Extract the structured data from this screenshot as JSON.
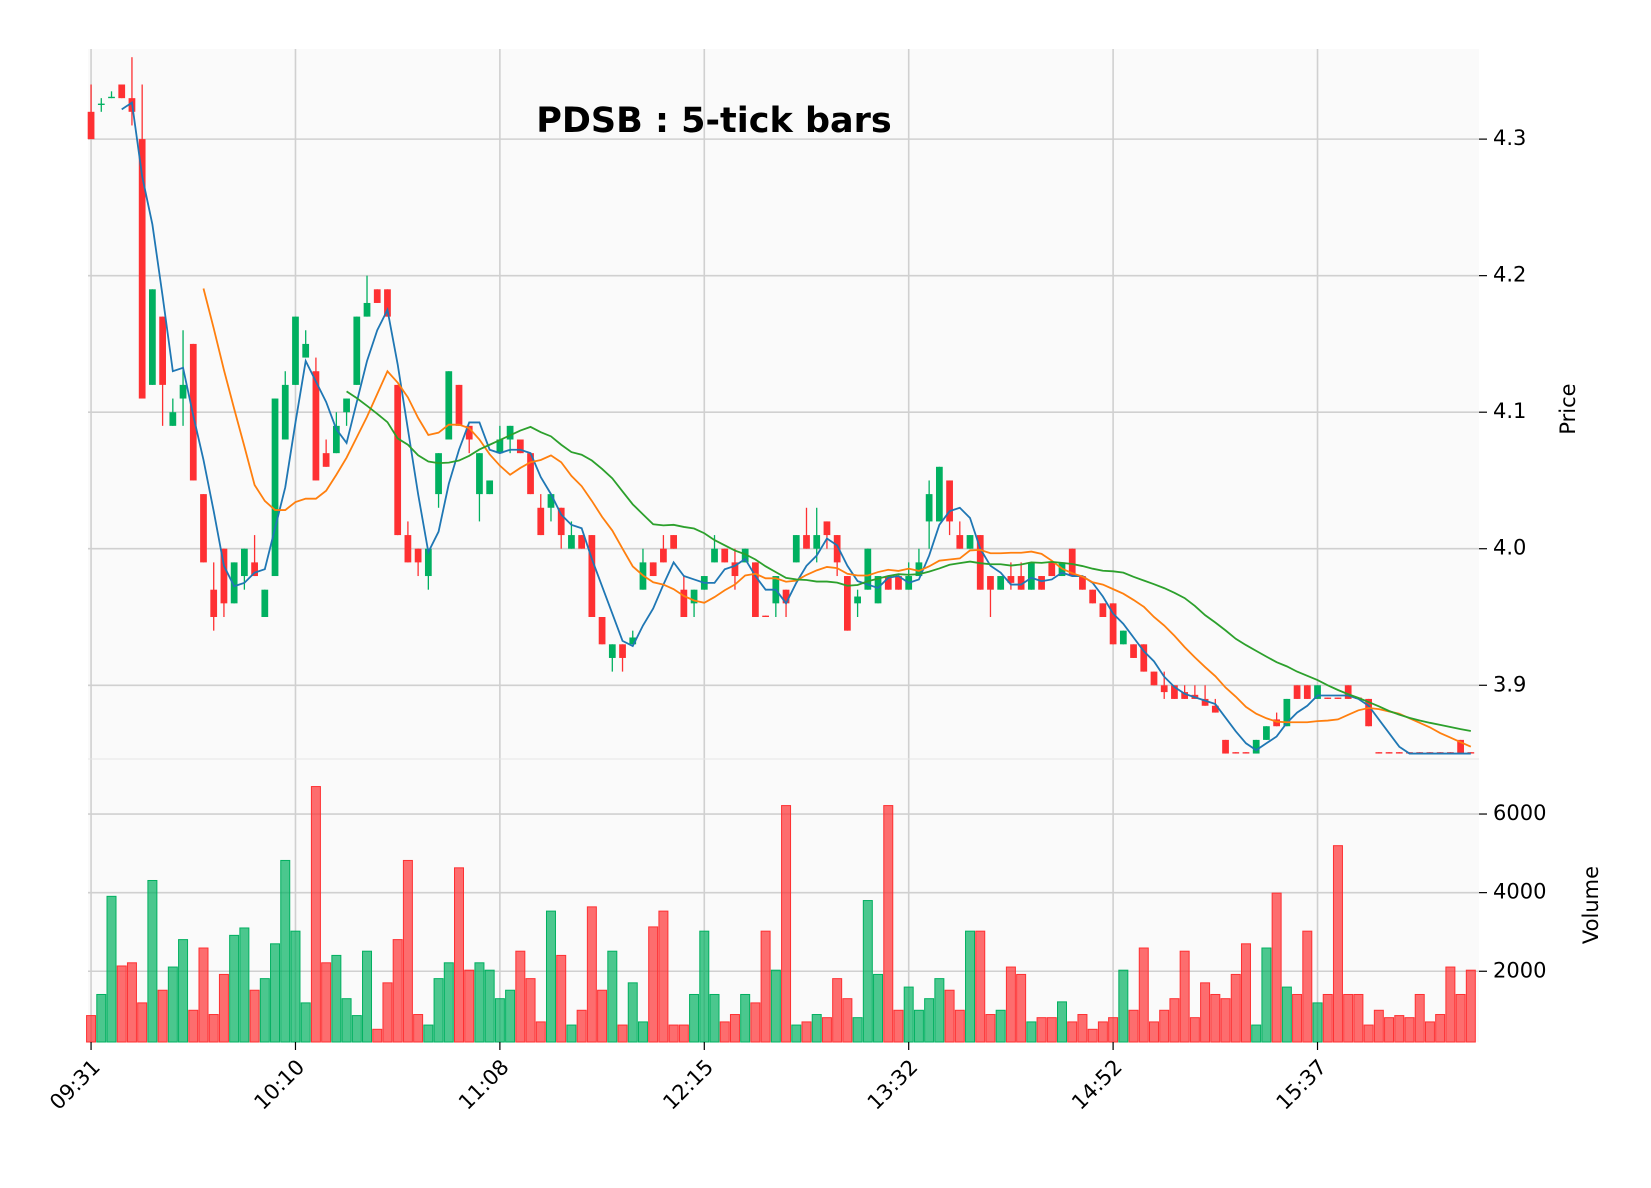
{
  "chart_data": {
    "type": "candlestick",
    "title": "PDSB : 5-tick bars",
    "ylabel": "Price",
    "volume_label": "Volume",
    "xlim": [
      -0.3,
      135.8
    ],
    "xticks": [
      {
        "value": 0,
        "label": "09:31"
      },
      {
        "value": 20,
        "label": "10:10"
      },
      {
        "value": 40,
        "label": "11:08"
      },
      {
        "value": 60,
        "label": "12:15"
      },
      {
        "value": 80,
        "label": "13:32"
      },
      {
        "value": 100,
        "label": "14:52"
      },
      {
        "value": 120,
        "label": "15:37"
      }
    ],
    "ylim": [
      3.846,
      4.366
    ],
    "yticks": [
      3.9,
      {
        "value": 4,
        "label": "4.0"
      },
      4.1,
      4.2,
      4.3
    ],
    "volume_ylim": [
      200,
      7400
    ],
    "volume_yticks": [
      2000,
      4000,
      6000
    ],
    "grid": true,
    "up_color": "#00b060",
    "down_color": "#fe3032",
    "moving_averages": [
      {
        "window": 4,
        "color": "#1f77b4"
      },
      {
        "window": 12,
        "color": "#ff7f0e"
      },
      {
        "window": 26,
        "color": "#2ca02c"
      }
    ],
    "open": [
      4.32,
      4.325,
      4.33,
      4.34,
      4.33,
      4.3,
      4.12,
      4.17,
      4.09,
      4.11,
      4.15,
      4.04,
      3.97,
      4.0,
      3.96,
      3.98,
      3.99,
      3.95,
      3.98,
      4.08,
      4.12,
      4.14,
      4.13,
      4.07,
      4.07,
      4.1,
      4.12,
      4.17,
      4.19,
      4.19,
      4.12,
      4.01,
      4.0,
      3.98,
      4.04,
      4.08,
      4.12,
      4.09,
      4.04,
      4.04,
      4.07,
      4.08,
      4.08,
      4.07,
      4.03,
      4.03,
      4.03,
      4.0,
      4.01,
      4.01,
      3.95,
      3.92,
      3.93,
      3.93,
      3.97,
      3.99,
      4.0,
      4.01,
      3.97,
      3.96,
      3.97,
      3.99,
      4.0,
      3.99,
      3.99,
      3.99,
      3.951,
      3.96,
      3.97,
      3.99,
      4.01,
      4.0,
      4.02,
      4.01,
      3.98,
      3.96,
      3.97,
      3.96,
      3.98,
      3.98,
      3.97,
      3.98,
      4.02,
      4.02,
      4.05,
      4.01,
      4.0,
      4.01,
      3.98,
      3.97,
      3.98,
      3.98,
      3.97,
      3.98,
      3.99,
      3.98,
      4.0,
      3.98,
      3.97,
      3.96,
      3.96,
      3.93,
      3.93,
      3.93,
      3.91,
      3.9,
      3.9,
      3.895,
      3.893,
      3.89,
      3.885,
      3.86,
      3.851,
      3.851,
      3.85,
      3.86,
      3.875,
      3.87,
      3.9,
      3.9,
      3.89,
      3.891,
      3.891,
      3.9,
      3.891,
      3.89,
      3.851,
      3.851,
      3.851,
      3.851,
      3.851,
      3.851,
      3.851,
      3.851,
      3.86,
      3.851
    ],
    "high": [
      4.34,
      4.33,
      4.335,
      4.34,
      4.36,
      4.34,
      4.19,
      4.17,
      4.11,
      4.16,
      4.15,
      4.04,
      3.99,
      4.0,
      3.99,
      4.0,
      4.01,
      3.97,
      4.11,
      4.13,
      4.17,
      4.16,
      4.14,
      4.08,
      4.1,
      4.11,
      4.17,
      4.2,
      4.19,
      4.19,
      4.12,
      4.02,
      4.0,
      4.0,
      4.07,
      4.13,
      4.12,
      4.09,
      4.07,
      4.05,
      4.09,
      4.09,
      4.08,
      4.07,
      4.04,
      4.04,
      4.03,
      4.02,
      4.01,
      4.01,
      3.95,
      3.93,
      3.93,
      3.94,
      4.0,
      3.99,
      4.01,
      4.01,
      3.98,
      3.97,
      3.98,
      4.01,
      4.0,
      4.0,
      4.0,
      3.99,
      3.951,
      3.98,
      3.97,
      4.01,
      4.03,
      4.03,
      4.02,
      4.01,
      3.98,
      3.97,
      4.0,
      3.98,
      3.98,
      3.98,
      3.99,
      4.0,
      4.05,
      4.06,
      4.05,
      4.02,
      4.01,
      4.01,
      3.98,
      3.98,
      3.99,
      3.99,
      3.99,
      3.98,
      3.99,
      3.99,
      4.0,
      3.98,
      3.97,
      3.96,
      3.96,
      3.94,
      3.93,
      3.93,
      3.91,
      3.91,
      3.9,
      3.9,
      3.9,
      3.9,
      3.89,
      3.86,
      3.851,
      3.851,
      3.86,
      3.87,
      3.88,
      3.89,
      3.9,
      3.9,
      3.9,
      3.891,
      3.891,
      3.9,
      3.891,
      3.89,
      3.851,
      3.851,
      3.851,
      3.851,
      3.851,
      3.851,
      3.851,
      3.851,
      3.86,
      3.851
    ],
    "low": [
      4.3,
      4.32,
      4.33,
      4.33,
      4.31,
      4.11,
      4.12,
      4.09,
      4.09,
      4.09,
      4.05,
      3.99,
      3.94,
      3.95,
      3.96,
      3.97,
      3.98,
      3.95,
      3.98,
      4.08,
      4.12,
      4.14,
      4.05,
      4.06,
      4.07,
      4.09,
      4.12,
      4.17,
      4.18,
      4.17,
      4.01,
      3.99,
      3.98,
      3.97,
      4.03,
      4.08,
      4.09,
      4.07,
      4.02,
      4.04,
      4.07,
      4.07,
      4.07,
      4.04,
      4.01,
      4.02,
      4.0,
      4.0,
      4.0,
      3.95,
      3.93,
      3.91,
      3.91,
      3.93,
      3.97,
      3.98,
      3.99,
      4.0,
      3.95,
      3.95,
      3.97,
      3.99,
      3.99,
      3.97,
      3.99,
      3.95,
      3.95,
      3.95,
      3.95,
      3.99,
      4.0,
      3.99,
      4.0,
      3.98,
      3.94,
      3.95,
      3.97,
      3.96,
      3.97,
      3.97,
      3.97,
      3.98,
      4.0,
      4.02,
      4.01,
      4.0,
      4.0,
      3.97,
      3.95,
      3.97,
      3.97,
      3.97,
      3.97,
      3.97,
      3.98,
      3.98,
      3.98,
      3.97,
      3.96,
      3.95,
      3.93,
      3.93,
      3.92,
      3.91,
      3.9,
      3.89,
      3.89,
      3.89,
      3.89,
      3.885,
      3.88,
      3.85,
      3.85,
      3.85,
      3.85,
      3.86,
      3.87,
      3.87,
      3.89,
      3.89,
      3.89,
      3.89,
      3.89,
      3.89,
      3.89,
      3.87,
      3.85,
      3.85,
      3.85,
      3.85,
      3.85,
      3.85,
      3.85,
      3.85,
      3.85,
      3.85
    ],
    "close": [
      4.3,
      4.326,
      4.331,
      4.33,
      4.32,
      4.11,
      4.19,
      4.12,
      4.1,
      4.12,
      4.05,
      3.99,
      3.95,
      3.96,
      3.99,
      4.0,
      3.98,
      3.97,
      4.11,
      4.12,
      4.17,
      4.15,
      4.05,
      4.06,
      4.09,
      4.11,
      4.17,
      4.18,
      4.18,
      4.17,
      4.01,
      3.99,
      3.99,
      4.0,
      4.07,
      4.13,
      4.09,
      4.08,
      4.07,
      4.05,
      4.08,
      4.09,
      4.07,
      4.04,
      4.01,
      4.04,
      4.01,
      4.01,
      4.0,
      3.95,
      3.93,
      3.93,
      3.92,
      3.935,
      3.99,
      3.98,
      3.99,
      4.0,
      3.95,
      3.97,
      3.98,
      4.0,
      3.99,
      3.98,
      4.0,
      3.95,
      3.95,
      3.98,
      3.96,
      4.01,
      4.0,
      4.01,
      4.01,
      3.99,
      3.94,
      3.965,
      4.0,
      3.98,
      3.97,
      3.97,
      3.98,
      3.99,
      4.04,
      4.06,
      4.02,
      4.0,
      4.01,
      3.97,
      3.97,
      3.98,
      3.975,
      3.97,
      3.99,
      3.97,
      3.98,
      3.99,
      3.98,
      3.97,
      3.96,
      3.95,
      3.93,
      3.94,
      3.92,
      3.91,
      3.9,
      3.895,
      3.89,
      3.89,
      3.89,
      3.885,
      3.88,
      3.85,
      3.85,
      3.85,
      3.86,
      3.87,
      3.87,
      3.89,
      3.89,
      3.89,
      3.9,
      3.89,
      3.89,
      3.89,
      3.89,
      3.87,
      3.85,
      3.85,
      3.85,
      3.85,
      3.85,
      3.85,
      3.85,
      3.85,
      3.85,
      3.85
    ],
    "volume": [
      872,
      1409,
      3906,
      2134,
      2215,
      1195,
      4309,
      1517,
      2107,
      2805,
      1007,
      2591,
      899,
      1919,
      2913,
      3101,
      1517,
      1812,
      2698,
      4819,
      3020,
      1195,
      6699,
      2215,
      2403,
      1302,
      872,
      2510,
      523,
      1705,
      2805,
      4819,
      899,
      631,
      1812,
      2215,
      4631,
      2027,
      2215,
      2027,
      1302,
      1517,
      2510,
      1812,
      711,
      3530,
      2403,
      631,
      1007,
      3638,
      1517,
      2510,
      631,
      1705,
      711,
      3128,
      3530,
      631,
      631,
      1409,
      3020,
      1409,
      711,
      899,
      1409,
      1195,
      3020,
      2027,
      6215,
      631,
      711,
      899,
      819,
      1812,
      1302,
      819,
      3799,
      1919,
      6215,
      1007,
      1597,
      1007,
      1302,
      1812,
      1517,
      1007,
      3020,
      3020,
      899,
      1007,
      2107,
      1919,
      711,
      819,
      819,
      1221,
      711,
      899,
      523,
      711,
      819,
      2027,
      1007,
      2591,
      711,
      1007,
      1302,
      2510,
      819,
      1705,
      1409,
      1302,
      1919,
      2698,
      631,
      2591,
      3987,
      1597,
      1409,
      3020,
      1195,
      1409,
      5195,
      1409,
      1409,
      631,
      1007,
      819,
      872,
      819,
      1409,
      711,
      899,
      2107,
      1409,
      2027
    ]
  }
}
